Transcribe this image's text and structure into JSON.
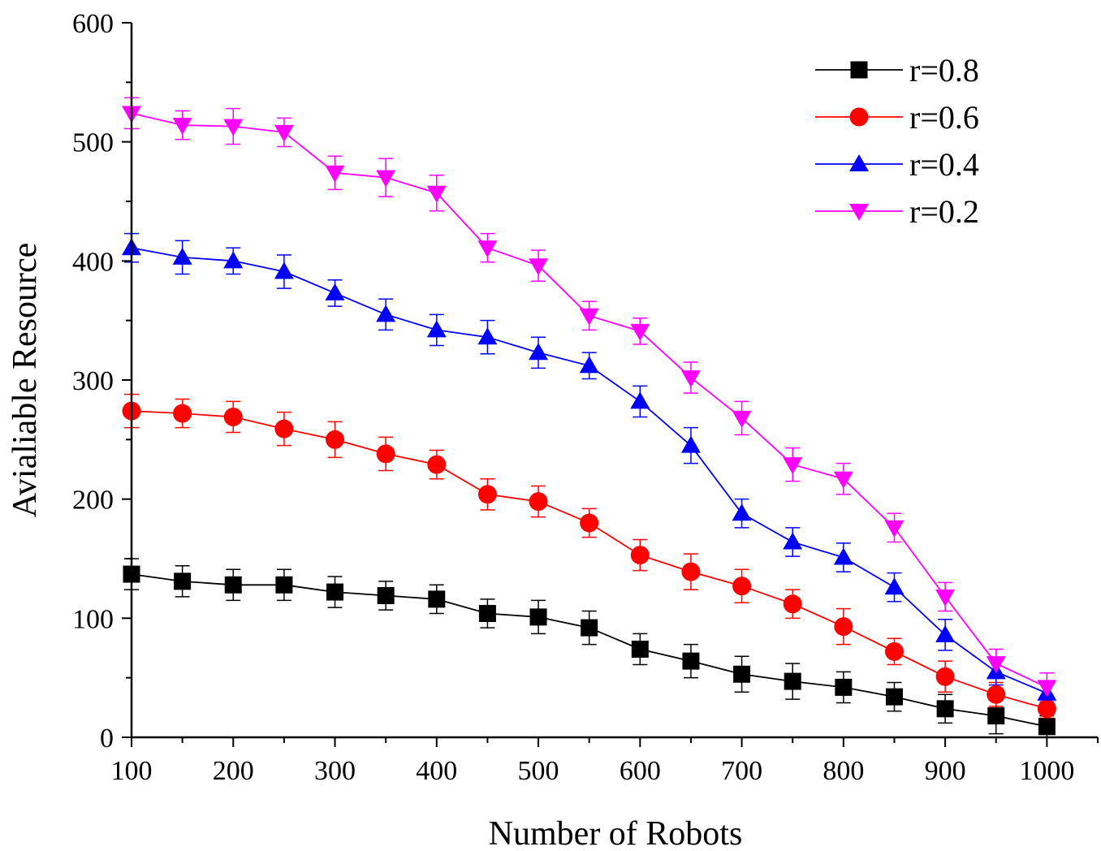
{
  "chart_data": {
    "type": "line",
    "title": "",
    "xlabel": "Number of Robots",
    "ylabel": "Avialiable Resource",
    "xlim": [
      100,
      1050
    ],
    "ylim": [
      0,
      600
    ],
    "xticks": [
      100,
      200,
      300,
      400,
      500,
      600,
      700,
      800,
      900,
      1000
    ],
    "yticks": [
      0,
      100,
      200,
      300,
      400,
      500,
      600
    ],
    "x": [
      100,
      150,
      200,
      250,
      300,
      350,
      400,
      450,
      500,
      550,
      600,
      650,
      700,
      750,
      800,
      850,
      900,
      950,
      1000
    ],
    "grid": false,
    "legend_position": "top-right",
    "error_bars": true,
    "series": [
      {
        "name": "r=0.8",
        "color": "#000000",
        "marker": "square",
        "values": [
          137,
          131,
          128,
          128,
          122,
          119,
          116,
          104,
          101,
          92,
          74,
          64,
          53,
          47,
          42,
          34,
          24,
          18,
          9
        ],
        "errors": [
          13,
          13,
          13,
          13,
          13,
          12,
          12,
          12,
          14,
          14,
          13,
          14,
          15,
          15,
          13,
          12,
          12,
          15,
          9
        ]
      },
      {
        "name": "r=0.6",
        "color": "#ff0000",
        "marker": "circle",
        "values": [
          274,
          272,
          269,
          259,
          250,
          238,
          229,
          204,
          198,
          180,
          153,
          139,
          127,
          112,
          93,
          72,
          51,
          36,
          24
        ],
        "errors": [
          14,
          12,
          13,
          14,
          15,
          14,
          12,
          13,
          13,
          12,
          13,
          15,
          14,
          12,
          15,
          11,
          13,
          10,
          8
        ]
      },
      {
        "name": "r=0.4",
        "color": "#0000ff",
        "marker": "triangle-up",
        "values": [
          411,
          403,
          400,
          391,
          373,
          355,
          342,
          336,
          323,
          312,
          282,
          245,
          188,
          164,
          151,
          126,
          86,
          55,
          37
        ],
        "errors": [
          12,
          14,
          11,
          14,
          11,
          13,
          13,
          14,
          13,
          11,
          13,
          15,
          12,
          12,
          12,
          12,
          13,
          11,
          10
        ]
      },
      {
        "name": "r=0.2",
        "color": "#ff00ff",
        "marker": "triangle-down",
        "values": [
          524,
          514,
          513,
          508,
          474,
          470,
          457,
          411,
          396,
          354,
          341,
          302,
          268,
          229,
          217,
          176,
          118,
          62,
          42
        ],
        "errors": [
          13,
          12,
          15,
          12,
          14,
          16,
          15,
          12,
          13,
          12,
          11,
          13,
          14,
          14,
          13,
          12,
          12,
          12,
          12
        ]
      }
    ]
  }
}
